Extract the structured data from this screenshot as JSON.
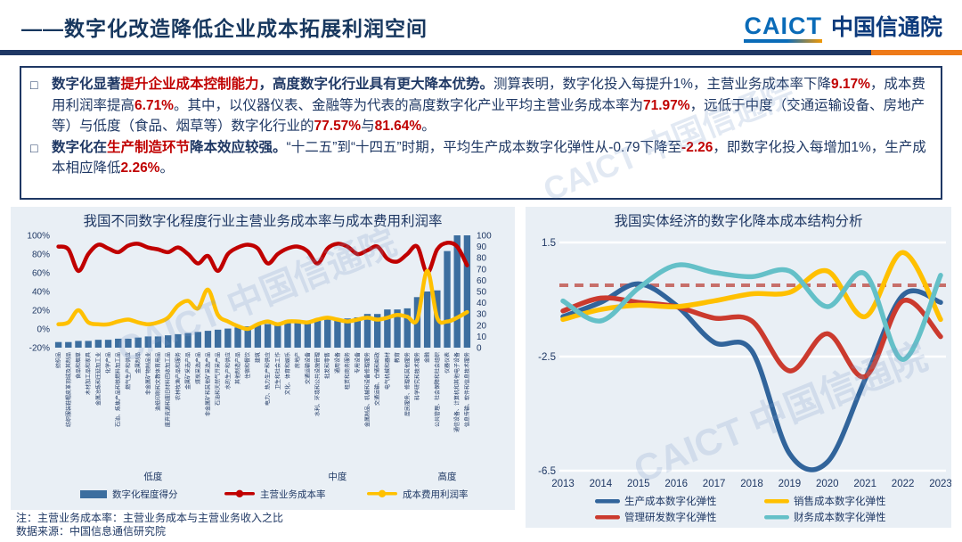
{
  "header": {
    "title": "——数字化改造降低企业成本拓展利润空间",
    "logo_caict": "CAICT",
    "logo_cn": "中国信通院"
  },
  "watermark": {
    "text": "CAICT 中国信通院"
  },
  "textbox": {
    "marker": "□",
    "bullets": [
      {
        "segments": [
          {
            "t": "数字化显著",
            "c": "blue",
            "b": true
          },
          {
            "t": "提升企业成本控制能力",
            "c": "red",
            "b": true
          },
          {
            "t": "，高度数字化行业具有更大降本优势。",
            "c": "blue",
            "b": true
          },
          {
            "t": "测算表明，数字化投入每提升1%，主营业务成本率下降",
            "c": "blue",
            "b": false
          },
          {
            "t": "9.17%",
            "c": "red",
            "b": true
          },
          {
            "t": "，成本费用利润率提高",
            "c": "blue",
            "b": false
          },
          {
            "t": "6.71%",
            "c": "red",
            "b": true
          },
          {
            "t": "。其中，以仪器仪表、金融等为代表的高度数字化产业平均主营业务成本率为",
            "c": "blue",
            "b": false
          },
          {
            "t": "71.97%",
            "c": "red",
            "b": true
          },
          {
            "t": "，远低于中度（交通运输设备、房地产等）与低度（食品、烟草等）数字化行业的",
            "c": "blue",
            "b": false
          },
          {
            "t": "77.57%",
            "c": "red",
            "b": true
          },
          {
            "t": "与",
            "c": "blue",
            "b": false
          },
          {
            "t": "81.64%",
            "c": "red",
            "b": true
          },
          {
            "t": "。",
            "c": "blue",
            "b": false
          }
        ]
      },
      {
        "segments": [
          {
            "t": "数字化在",
            "c": "blue",
            "b": true
          },
          {
            "t": "生产制造环节",
            "c": "red",
            "b": true
          },
          {
            "t": "降本效应较强。",
            "c": "blue",
            "b": true
          },
          {
            "t": "“十二五”到“十四五”时期，平均生产成本数字化弹性从-0.79下降至",
            "c": "blue",
            "b": false
          },
          {
            "t": "-2.26",
            "c": "red",
            "b": true
          },
          {
            "t": "，即数字化投入每增加1%，生产成本相应降低",
            "c": "blue",
            "b": false
          },
          {
            "t": "2.26%",
            "c": "red",
            "b": true
          },
          {
            "t": "。",
            "c": "blue",
            "b": false
          }
        ]
      }
    ]
  },
  "footer": {
    "note": "注：主营业务成本率：主营业务成本与主营业务收入之比",
    "source": "数据来源：中国信息通信研究院"
  },
  "colors": {
    "dark_blue": "#1F3864",
    "accent_red": "#C00000",
    "bar_blue": "#3C6E9F",
    "line_yellow": "#FFC000",
    "prod_blue": "#31649B",
    "mgmt_red": "#CB3A2E",
    "fin_teal": "#64C0C8",
    "ref_dash": "#C4625C",
    "panel_bg": "#E9EFF5",
    "divider_orange": "#EE7A18"
  },
  "chart_data": [
    {
      "type": "bar",
      "title": "我国不同数字化程度行业主营业务成本率与成本费用利润率",
      "categories": [
        "纺织品",
        "纺织服装鞋帽皮革羽绒及其制品",
        "食品和烟草",
        "木材加工品和家具",
        "金属冶炼和压延加工业",
        "化学产品",
        "石油、炼焦产品和核燃料加工品",
        "燃气生产和供应",
        "金属制品",
        "非金属矿物制品业",
        "造纸印刷和文教体育用品",
        "废弃资源和废旧材料回收加工品",
        "农林牧渔产品和服务",
        "金属矿采选产品",
        "煤炭采选产品",
        "非金属矿和其他矿采选产品",
        "石油和天然气开采产品",
        "水的生产和供应",
        "其他制造产品",
        "住宿和餐饮",
        "建筑",
        "电力、热力生产和供应",
        "卫生和社会工作",
        "文化、体育和娱乐",
        "房地产",
        "交通运输设备",
        "水利、环境和公共设施管理",
        "批发和零售",
        "通用设备",
        "租赁和商务服务",
        "专用设备",
        "金属制品、机械和设备修理服务",
        "交通运输、仓储和邮政",
        "电气机械和器材",
        "教育",
        "居民服务、修理和其他服务",
        "科学研究和技术服务",
        "金融",
        "公共管理、社会保障和社会组织",
        "仪器仪表",
        "通信设备、计算机和其他电子设备",
        "信息传输、软件和信息技术服务"
      ],
      "groups": [
        {
          "label": "低度",
          "count": 20
        },
        {
          "label": "中度",
          "count": 17
        },
        {
          "label": "高度",
          "count": 5
        }
      ],
      "series": [
        {
          "name": "数字化程度得分",
          "type": "bar",
          "axis": "right",
          "color": "#3C6E9F",
          "values": [
            5,
            5,
            6,
            6,
            7,
            7,
            8,
            8,
            9,
            10,
            10,
            11,
            12,
            13,
            14,
            15,
            16,
            17,
            18,
            19,
            20,
            21,
            22,
            22,
            23,
            24,
            24,
            25,
            25,
            26,
            27,
            30,
            30,
            34,
            34,
            35,
            45,
            50,
            51,
            86,
            100,
            100
          ]
        },
        {
          "name": "主营业务成本率",
          "type": "line",
          "axis": "left",
          "color": "#C00000",
          "values": [
            88,
            85,
            62,
            80,
            90,
            86,
            82,
            89,
            91,
            87,
            85,
            82,
            87,
            80,
            70,
            78,
            62,
            80,
            87,
            90,
            86,
            70,
            80,
            86,
            88,
            83,
            70,
            86,
            91,
            88,
            80,
            84,
            88,
            75,
            72,
            80,
            88,
            60,
            85,
            92,
            88,
            68
          ]
        },
        {
          "name": "成本费用利润率",
          "type": "line",
          "axis": "left",
          "color": "#FFC000",
          "values": [
            5,
            7,
            20,
            7,
            5,
            5,
            8,
            10,
            7,
            5,
            7,
            12,
            25,
            30,
            22,
            42,
            15,
            8,
            3,
            0,
            5,
            8,
            5,
            8,
            8,
            7,
            10,
            12,
            10,
            8,
            10,
            12,
            10,
            12,
            15,
            13,
            10,
            62,
            12,
            8,
            12,
            18
          ]
        }
      ],
      "left_axis": {
        "min": -20,
        "max": 100,
        "step": 20,
        "suffix": "%"
      },
      "right_axis": {
        "min": 0,
        "max": 100,
        "step": 10,
        "suffix": ""
      }
    },
    {
      "type": "line",
      "title": "我国实体经济的数字化降本成本结构分析",
      "x": [
        2013,
        2014,
        2015,
        2016,
        2017,
        2018,
        2019,
        2020,
        2021,
        2022,
        2023
      ],
      "ylim": [
        -6.5,
        1.5
      ],
      "yticks": [
        1.5,
        -2.5,
        -6.5
      ],
      "ref_line": 0,
      "series": [
        {
          "name": "生产成本数字化弹性",
          "color": "#31649B",
          "values": [
            -1.1,
            -0.6,
            0.05,
            -0.7,
            -2.0,
            -2.3,
            -5.9,
            -6.2,
            -3.3,
            -0.35,
            -0.6
          ]
        },
        {
          "name": "管理研发数字化弹性",
          "color": "#CB3A2E",
          "values": [
            -0.9,
            -0.45,
            -0.6,
            -0.75,
            -1.15,
            -1.25,
            -3.0,
            -1.7,
            -3.2,
            -0.55,
            -1.8
          ]
        },
        {
          "name": "销售成本数字化弹性",
          "color": "#FFC000",
          "values": [
            -1.2,
            -0.85,
            -0.7,
            -0.75,
            -0.55,
            -0.3,
            -0.25,
            0.5,
            -1.1,
            1.15,
            -1.2
          ]
        },
        {
          "name": "财务成本数字化弹性",
          "color": "#64C0C8",
          "values": [
            -0.55,
            -1.25,
            -0.1,
            0.7,
            0.45,
            0.3,
            0.5,
            -0.75,
            0.4,
            -2.6,
            0.35
          ]
        }
      ],
      "legend_order": [
        "生产成本数字化弹性",
        "销售成本数字化弹性",
        "管理研发数字化弹性",
        "财务成本数字化弹性"
      ]
    }
  ]
}
